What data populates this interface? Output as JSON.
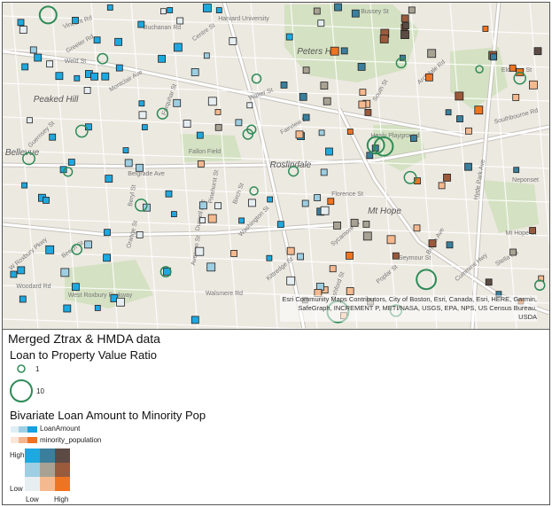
{
  "map": {
    "place_labels": [
      {
        "text": "Vincent Rd"
      },
      {
        "text": "Harvard University"
      },
      {
        "text": "Bussey St"
      },
      {
        "text": "Greeter Rd"
      },
      {
        "text": "Buchanan Rd"
      },
      {
        "text": "Centre St"
      },
      {
        "text": "Peters Hill"
      },
      {
        "text": "Weld St"
      },
      {
        "text": "Archdale Rd"
      },
      {
        "text": "Peaked Hill"
      },
      {
        "text": "Montclair Ave"
      },
      {
        "text": "Eldridge St"
      },
      {
        "text": "Farquhar St"
      },
      {
        "text": "Walter St"
      },
      {
        "text": "South St"
      },
      {
        "text": "Roslindale"
      },
      {
        "text": "Bellevue"
      },
      {
        "text": "Healy Playground"
      },
      {
        "text": "Fallon Field"
      },
      {
        "text": "Belgrade Ave"
      },
      {
        "text": "Fairview St"
      },
      {
        "text": "Washington St"
      },
      {
        "text": "Florence St"
      },
      {
        "text": "Mt Hope"
      },
      {
        "text": "Birch St"
      },
      {
        "text": "Pinehurst St"
      },
      {
        "text": "Poplar St"
      },
      {
        "text": "West Roxbury Parkway"
      },
      {
        "text": "Woodard Rd"
      },
      {
        "text": "Orange St"
      },
      {
        "text": "Avervon St"
      },
      {
        "text": "Walsmere Rd"
      },
      {
        "text": "Seymour St"
      },
      {
        "text": "Stella Rd"
      },
      {
        "text": "Mt Hope St"
      },
      {
        "text": "Cummins Hwy"
      },
      {
        "text": "Hyde Park Ave"
      },
      {
        "text": "Brown Ave"
      },
      {
        "text": "Ashford St"
      },
      {
        "text": "Neponset"
      },
      {
        "text": "Sycamore St"
      },
      {
        "text": "Southbourne Rd"
      },
      {
        "text": "Guernsey St"
      },
      {
        "text": "Durnell Ave"
      },
      {
        "text": "Kittredge St"
      },
      {
        "text": "Beryl St"
      },
      {
        "text": "Beech St"
      },
      {
        "text": "W Roxbury Pkwy"
      }
    ],
    "attribution": "Esri Community Maps Contributors, City of Boston, Esri, Canada, Esri, HERE, Garmin, SafeGraph, INCREMENT P, METI/NASA, USGS, EPA, NPS, US Census Bureau, USDA",
    "colors": {
      "land": "#ece9e1",
      "park": "#d4e1c2",
      "road": "#ffffff",
      "major_road": "#c7c3bd",
      "ring": "#2e8b57"
    }
  },
  "legend": {
    "title": "Merged Ztrax & HMDA data",
    "ratio_title": "Loan to Property Value Ratio",
    "ratio_small_label": "1",
    "ratio_large_label": "10",
    "bivariate_title": "Bivariate Loan Amount to Minority Pop",
    "series": [
      {
        "label": "LoanAmount",
        "colors": [
          "#deeef4",
          "#9fcfe3",
          "#16a0dc"
        ]
      },
      {
        "label": "minority_population",
        "colors": [
          "#fbe7da",
          "#f4b58f",
          "#ee7222"
        ]
      }
    ],
    "matrix_colors": [
      [
        "#1ea8e0",
        "#3a7f9c",
        "#5c4a45"
      ],
      [
        "#9ecee1",
        "#a8a294",
        "#9a5a3c"
      ],
      [
        "#e7eef2",
        "#f5b98f",
        "#ef7421"
      ]
    ],
    "axis_high": "High",
    "axis_low": "Low",
    "x_low": "Low",
    "x_high": "High"
  }
}
